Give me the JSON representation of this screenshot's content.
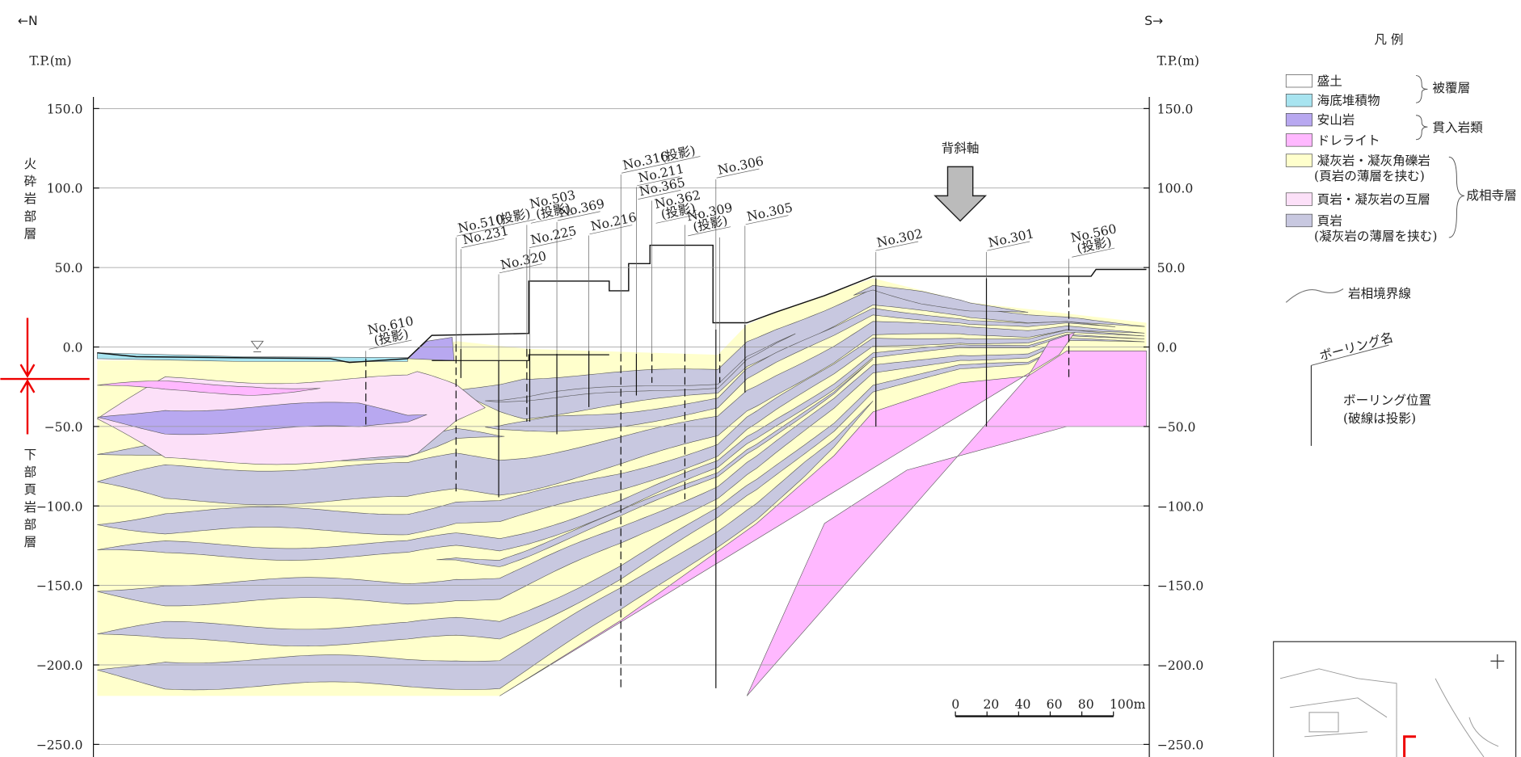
{
  "header": {
    "north": "←N",
    "south": "S→",
    "unit_left": "T.P.(m)",
    "unit_right": "T.P.(m)"
  },
  "axis": {
    "ylim": [
      -250,
      150
    ],
    "yticks": [
      {
        "value": 150,
        "label": "150.0"
      },
      {
        "value": 100,
        "label": "100.0"
      },
      {
        "value": 50,
        "label": "50.0"
      },
      {
        "value": 0,
        "label": "0.0"
      },
      {
        "value": -50,
        "label": "−50.0"
      },
      {
        "value": -100,
        "label": "−100.0"
      },
      {
        "value": -150,
        "label": "−150.0"
      },
      {
        "value": -200,
        "label": "−200.0"
      },
      {
        "value": -250,
        "label": "−250.0"
      }
    ]
  },
  "formations": {
    "upper": "火砕岩部層",
    "lower": "下部頁岩部層"
  },
  "anticline": "背斜軸",
  "boreholes": [
    {
      "name": "No.610",
      "note": "(投影)"
    },
    {
      "name": "No.510",
      "note": "(投影)"
    },
    {
      "name": "No.231"
    },
    {
      "name": "No.320"
    },
    {
      "name": "No.503",
      "note": "(投影)"
    },
    {
      "name": "No.225"
    },
    {
      "name": "No.369"
    },
    {
      "name": "No.216"
    },
    {
      "name": "No.316",
      "note": "(投影)"
    },
    {
      "name": "No.211"
    },
    {
      "name": "No.365"
    },
    {
      "name": "No.362",
      "note": "(投影)"
    },
    {
      "name": "No.309",
      "note": "(投影)"
    },
    {
      "name": "No.306"
    },
    {
      "name": "No.305"
    },
    {
      "name": "No.302"
    },
    {
      "name": "No.301"
    },
    {
      "name": "No.560",
      "note": "(投影)"
    }
  ],
  "legend": {
    "title": "凡 例",
    "items": [
      {
        "lines": [
          "盛土"
        ],
        "color": "#ffffff"
      },
      {
        "lines": [
          "海底堆積物"
        ],
        "color": "#a8e4f0"
      },
      {
        "lines": [
          "安山岩"
        ],
        "color": "#b8a8f0"
      },
      {
        "lines": [
          "ドレライト"
        ],
        "color": "#ffb8ff"
      },
      {
        "lines": [
          "凝灰岩・凝灰角礫岩",
          "(頁岩の薄層を挟む)"
        ],
        "color": "#ffffcc"
      },
      {
        "lines": [
          "頁岩・凝灰岩の互層"
        ],
        "color": "#fce0f8"
      },
      {
        "lines": [
          "頁岩",
          "(凝灰岩の薄層を挟む)"
        ],
        "color": "#c8c8e0"
      }
    ],
    "groups": [
      "被覆層",
      "貫入岩類",
      "成相寺層"
    ],
    "boundary": "岩相境界線",
    "boring_name": "ボーリング名",
    "boring_position": [
      "ボーリング位置",
      "(破線は投影)"
    ]
  },
  "scale_bar": [
    "0",
    "20",
    "40",
    "60",
    "80",
    "100m"
  ]
}
